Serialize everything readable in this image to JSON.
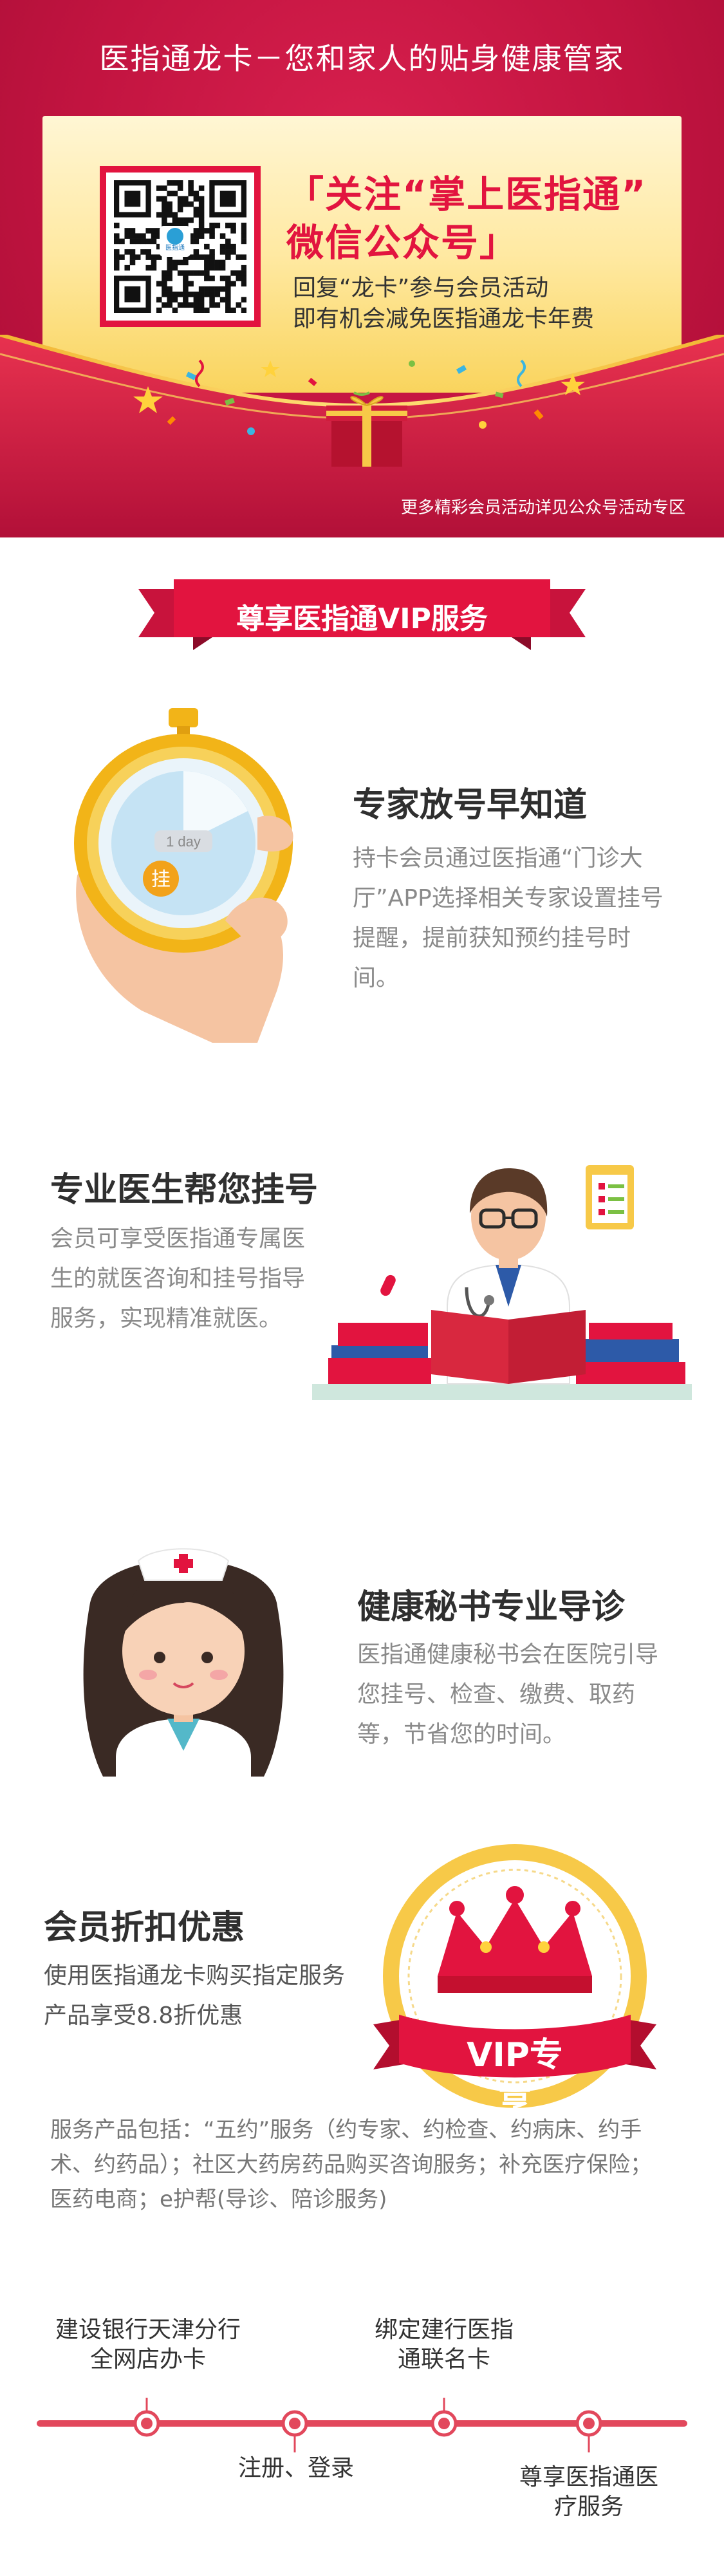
{
  "header": {
    "title": "医指通龙卡－您和家人的贴身健康管家",
    "promo_line1": "「关注“掌上医指通”",
    "promo_line2": "微信公众号」",
    "promo_line3": "回复“龙卡”参与会员活动",
    "promo_line4": "即有机会减免医指通龙卡年费",
    "footer_note": "更多精彩会员活动详见公众号活动专区",
    "qr_caption": "医指通"
  },
  "section_banner": {
    "label": "尊享医指通VIP服务"
  },
  "features": [
    {
      "title": "专家放号早知道",
      "desc": "持卡会员通过医指通“门诊大厅”APP选择相关专家设置挂号提醒，提前获知预约挂号时间。",
      "icon": "stopwatch-icon",
      "stopwatch_label": "1 day",
      "stopwatch_badge": "挂"
    },
    {
      "title": "专业医生帮您挂号",
      "desc": "会员可享受医指通专属医生的就医咨询和挂号指导服务，实现精准就医。",
      "icon": "doctor-icon"
    },
    {
      "title": "健康秘书专业导诊",
      "desc": "医指通健康秘书会在医院引导您挂号、检查、缴费、取药等，节省您的时间。",
      "icon": "nurse-icon"
    },
    {
      "title": "会员折扣优惠",
      "desc": "使用医指通龙卡购买指定服务产品享受8.8折优惠",
      "icon": "vip-crown-icon",
      "badge": "VIP专享"
    }
  ],
  "services_note": "服务产品包括：“五约”服务（约专家、约检查、约病床、约手术、约药品）；社区大药房药品购买咨询服务；补充医疗保险；医药电商；e护帮(导诊、陪诊服务)",
  "timeline": {
    "steps": [
      "建设银行天津分行全网店办卡",
      "注册、登录",
      "绑定建行医指通联名卡",
      "尊享医指通医疗服务"
    ]
  },
  "colors": {
    "brand_red": "#c9173f",
    "accent_red": "#e2143f",
    "gold": "#f7c948"
  }
}
